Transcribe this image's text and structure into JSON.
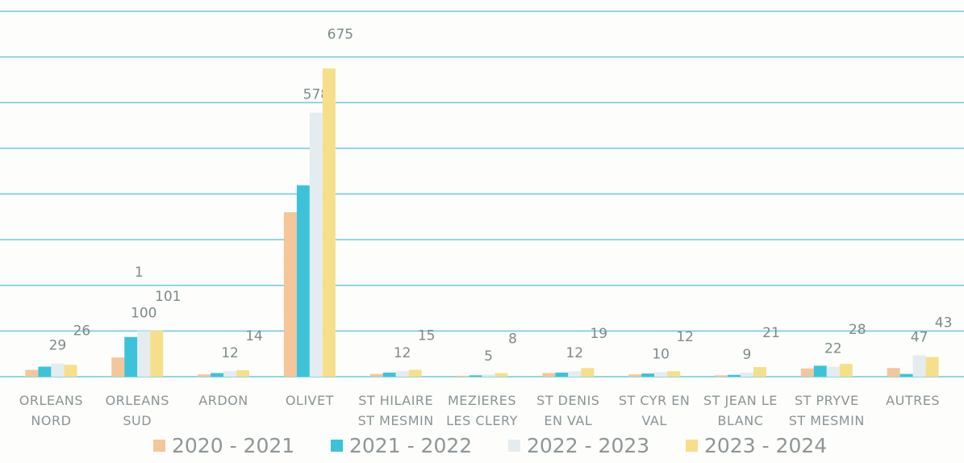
{
  "chart_data": {
    "type": "bar",
    "categories": [
      "ORLEANS NORD",
      "ORLEANS SUD",
      "ARDON",
      "OLIVET",
      "ST HILAIRE ST MESMIN",
      "MEZIERES LES CLERY",
      "ST DENIS EN VAL",
      "ST CYR EN VAL",
      "ST JEAN LE BLANC",
      "ST PRYVE ST MESMIN",
      "AUTRES"
    ],
    "series": [
      {
        "name": "2020 - 2021",
        "color": "#f3c79a",
        "labels": false,
        "values": [
          15,
          42,
          5,
          360,
          6,
          2,
          8,
          5,
          3,
          18,
          19
        ]
      },
      {
        "name": "2021 - 2022",
        "color": "#3cc3da",
        "labels": false,
        "values": [
          22,
          87,
          8,
          419,
          9,
          3,
          9,
          7,
          4,
          24,
          6
        ]
      },
      {
        "name": "2022 - 2023",
        "color": "#e4ecef",
        "labels": true,
        "values": [
          29,
          100,
          12,
          578,
          12,
          5,
          12,
          10,
          9,
          22,
          47
        ]
      },
      {
        "name": "2023 - 2024",
        "color": "#f6df8a",
        "labels": true,
        "values": [
          26,
          101,
          14,
          675,
          15,
          8,
          19,
          12,
          21,
          28,
          43
        ]
      }
    ],
    "annotations": [
      "1"
    ],
    "ylim": [
      0,
      800
    ],
    "yticks": [
      0,
      100,
      200,
      300,
      400,
      500,
      600,
      700,
      800
    ],
    "grid": true
  }
}
